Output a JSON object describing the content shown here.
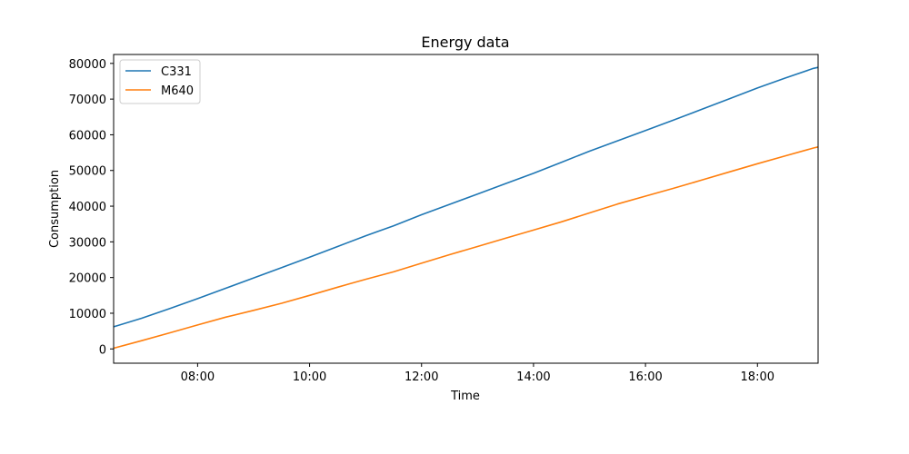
{
  "chart_data": {
    "type": "line",
    "title": "Energy data",
    "xlabel": "Time",
    "ylabel": "Consumption",
    "x": [
      "06:30",
      "07:00",
      "07:30",
      "08:00",
      "08:30",
      "09:00",
      "09:30",
      "10:00",
      "10:30",
      "11:00",
      "11:30",
      "12:00",
      "12:30",
      "13:00",
      "13:30",
      "14:00",
      "14:30",
      "15:00",
      "15:30",
      "16:00",
      "16:30",
      "17:00",
      "17:30",
      "18:00",
      "18:30",
      "19:00",
      "19:05"
    ],
    "series": [
      {
        "name": "C331",
        "color": "#1f77b4",
        "values": [
          6200,
          8600,
          11300,
          14100,
          17000,
          19900,
          22800,
          25700,
          28700,
          31700,
          34500,
          37600,
          40500,
          43400,
          46300,
          49200,
          52300,
          55400,
          58300,
          61200,
          64100,
          67100,
          70100,
          73100,
          75900,
          78600,
          78900
        ]
      },
      {
        "name": "M640",
        "color": "#ff7f0e",
        "values": [
          200,
          2300,
          4500,
          6700,
          8900,
          10800,
          12800,
          15000,
          17300,
          19500,
          21600,
          24000,
          26400,
          28700,
          31000,
          33300,
          35600,
          38100,
          40600,
          42800,
          45000,
          47300,
          49600,
          51900,
          54100,
          56300,
          56600
        ]
      }
    ],
    "x_ticks": [
      "08:00",
      "10:00",
      "12:00",
      "14:00",
      "16:00",
      "18:00"
    ],
    "y_ticks": [
      0,
      10000,
      20000,
      30000,
      40000,
      50000,
      60000,
      70000,
      80000
    ],
    "xlim": [
      "06:30",
      "19:05"
    ],
    "ylim": [
      -4000,
      82500
    ],
    "grid": false,
    "legend": "top-left"
  }
}
